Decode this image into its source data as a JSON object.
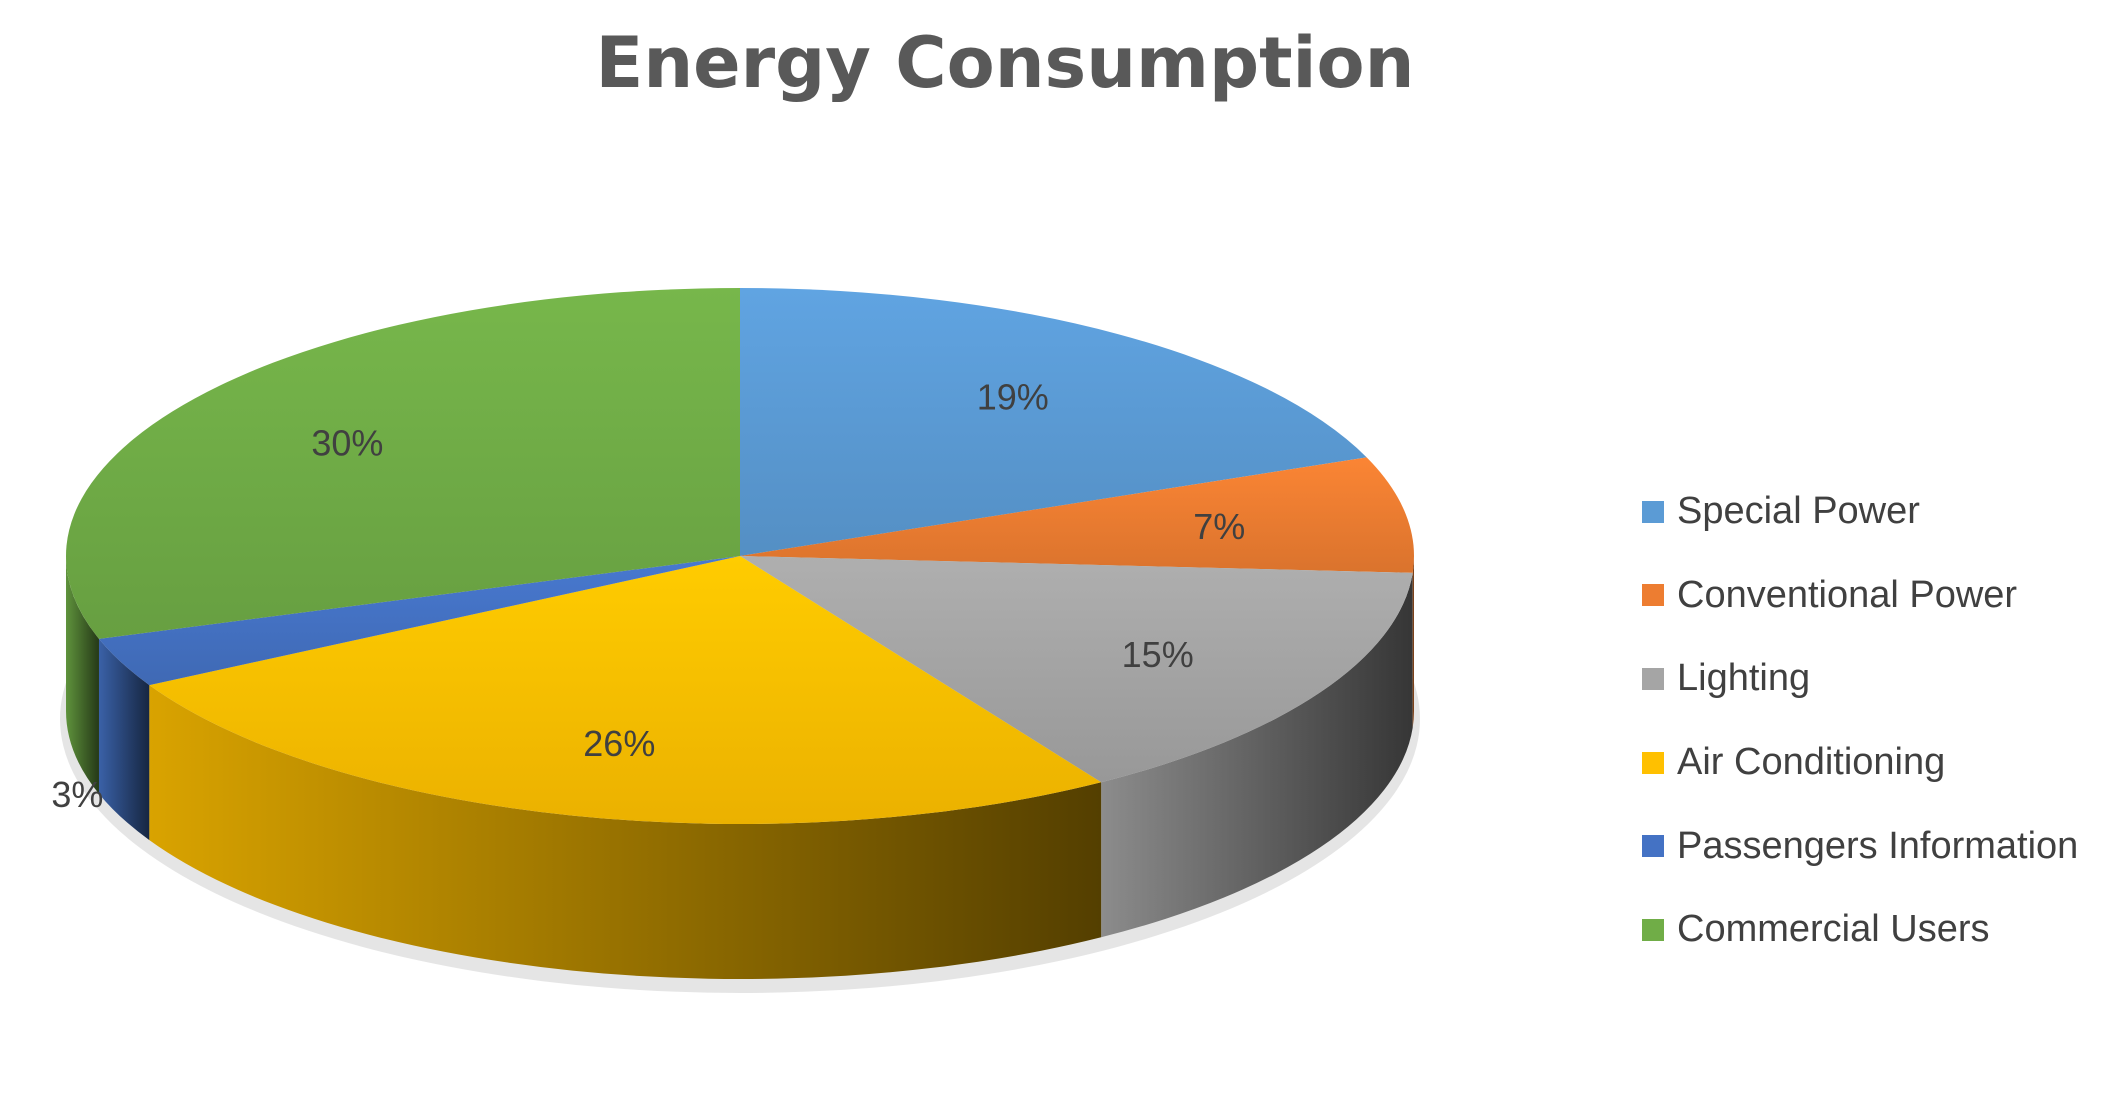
{
  "chart_data": {
    "type": "pie",
    "title": "Energy Consumption",
    "categories": [
      "Special Power",
      "Conventional Power",
      "Lighting",
      "Air Conditioning",
      "Passengers Information",
      "Commercial Users"
    ],
    "values": [
      19,
      7,
      15,
      26,
      3,
      30
    ],
    "labels": [
      "19%",
      "7%",
      "15%",
      "26%",
      "3%",
      "30%"
    ],
    "colors": [
      "#5B9BD5",
      "#ED7D31",
      "#A5A5A5",
      "#FFC000",
      "#4472C4",
      "#70AD47"
    ],
    "legend": "right",
    "style": "3d"
  }
}
